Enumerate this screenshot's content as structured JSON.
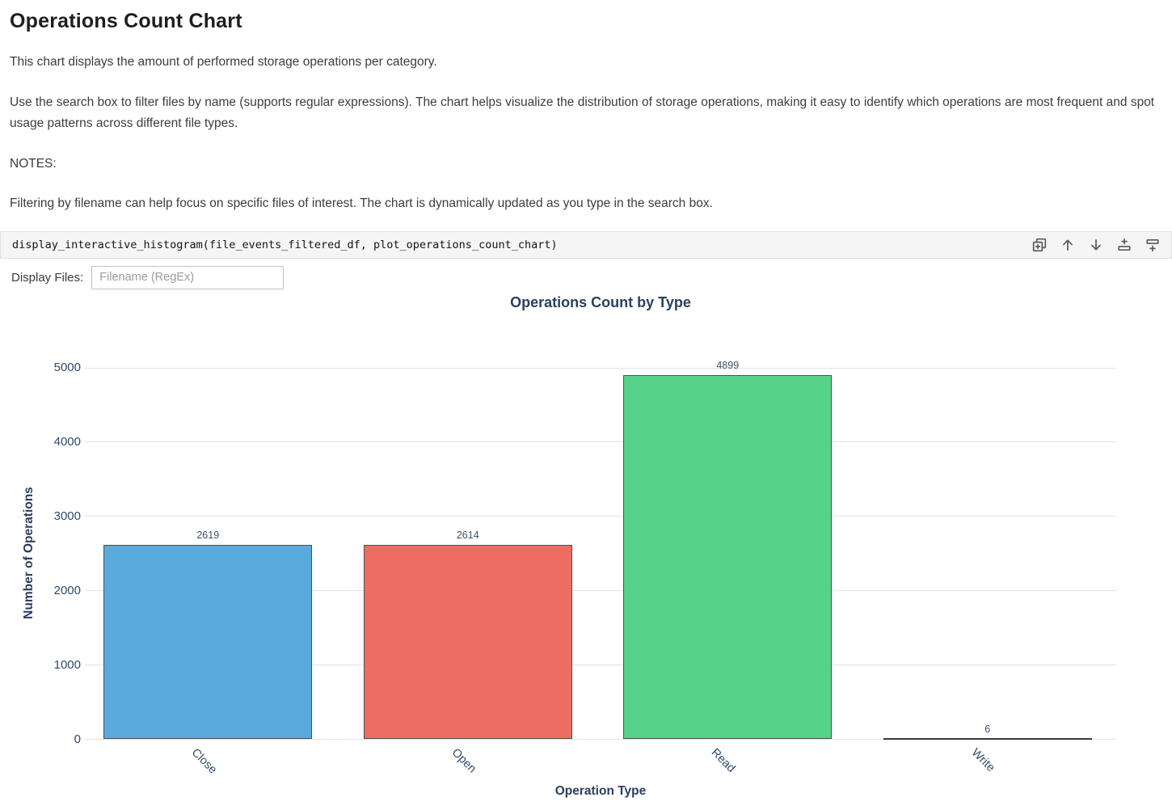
{
  "doc": {
    "title": "Operations Count Chart",
    "paragraphs": [
      "This chart displays the amount of performed storage operations per category.",
      "Use the search box to filter files by name (supports regular expressions). The chart helps visualize the distribution of storage operations, making it easy to identify which operations are most frequent and spot usage patterns across different file types.",
      "Filtering by filename can help focus on specific files of interest. The chart is dynamically updated as you type in the search box."
    ],
    "notes_label": "NOTES:"
  },
  "code_cell": {
    "code": "display_interactive_histogram(file_events_filtered_df, plot_operations_count_chart)",
    "toolbar": [
      {
        "name": "duplicate-cell"
      },
      {
        "name": "move-cell-up"
      },
      {
        "name": "move-cell-down"
      },
      {
        "name": "insert-cell-above"
      },
      {
        "name": "insert-cell-below"
      }
    ]
  },
  "filter": {
    "label": "Display Files:",
    "placeholder": "Filename (RegEx)"
  },
  "chart_data": {
    "type": "bar",
    "title": "Operations Count by Type",
    "xlabel": "Operation Type",
    "ylabel": "Number of Operations",
    "categories": [
      "Close",
      "Open",
      "Read",
      "Write"
    ],
    "values": [
      2619,
      2614,
      4899,
      6
    ],
    "bar_colors": [
      "#5aaade",
      "#ed6d62",
      "#56d28b",
      "#3a3a3a"
    ],
    "yticks": [
      0,
      1000,
      2000,
      3000,
      4000,
      5000
    ],
    "ylim": [
      0,
      5000
    ],
    "grid": true,
    "tick_rotation": -45,
    "legend": "none"
  },
  "colors": {
    "grid": "#e2e2e4",
    "axis_tick_text": "#2e4a6b",
    "chart_title_text": "#2a3f5f",
    "axis_title_text": "#2a3f5f",
    "value_label_text": "#3f5065",
    "bar_border": "#4f4f4f"
  }
}
